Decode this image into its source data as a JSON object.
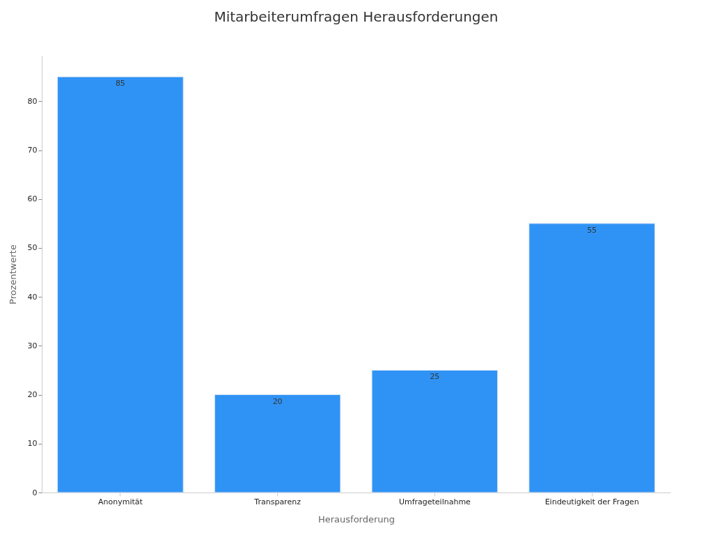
{
  "chart_data": {
    "type": "bar",
    "title": "Mitarbeiterumfragen Herausforderungen",
    "xlabel": "Herausforderung",
    "ylabel": "Prozentwerte",
    "categories": [
      "Anonymität",
      "Transparenz",
      "Umfrageteilnahme",
      "Eindeutigkeit der Fragen"
    ],
    "values": [
      85,
      20,
      25,
      55
    ],
    "color": "#2f93f5",
    "ylim": [
      0,
      89.3
    ],
    "yticks": [
      0,
      10,
      20,
      30,
      40,
      50,
      60,
      70,
      80
    ],
    "grid": false,
    "data_labels": true
  }
}
